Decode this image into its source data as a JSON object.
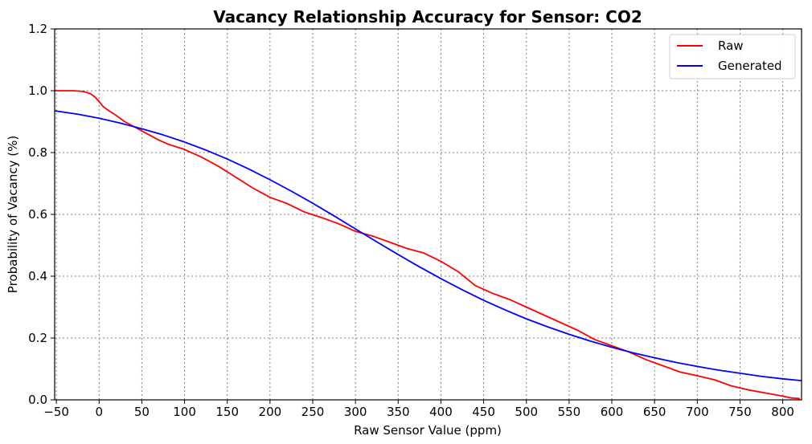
{
  "chart_data": {
    "type": "line",
    "title": "Vacancy Relationship Accuracy for Sensor: CO2",
    "xlabel": "Raw Sensor Value (ppm)",
    "ylabel": "Probability of Vacancy (%)",
    "xlim": [
      -52,
      822
    ],
    "ylim": [
      0,
      1.2
    ],
    "xticks": [
      -50,
      0,
      50,
      100,
      150,
      200,
      250,
      300,
      350,
      400,
      450,
      500,
      550,
      600,
      650,
      700,
      750,
      800
    ],
    "xtick_labels": [
      "−50",
      "0",
      "50",
      "100",
      "150",
      "200",
      "250",
      "300",
      "350",
      "400",
      "450",
      "500",
      "550",
      "600",
      "650",
      "700",
      "750",
      "800"
    ],
    "yticks": [
      0.0,
      0.2,
      0.4,
      0.6,
      0.8,
      1.0,
      1.2
    ],
    "ytick_labels": [
      "0.0",
      "0.2",
      "0.4",
      "0.6",
      "0.8",
      "1.0",
      "1.2"
    ],
    "grid": true,
    "legend_position": "top-right",
    "series": [
      {
        "name": "Raw",
        "color": "#ff0000",
        "x": [
          -52,
          -40,
          -30,
          -20,
          -15,
          -10,
          -5,
          0,
          5,
          10,
          20,
          30,
          40,
          50,
          60,
          70,
          80,
          100,
          120,
          140,
          160,
          180,
          200,
          220,
          240,
          260,
          280,
          300,
          320,
          340,
          360,
          380,
          400,
          420,
          440,
          460,
          480,
          500,
          520,
          540,
          560,
          580,
          600,
          620,
          640,
          660,
          680,
          700,
          720,
          740,
          760,
          780,
          800,
          810,
          820
        ],
        "y": [
          1.0,
          1.0,
          1.0,
          0.998,
          0.995,
          0.99,
          0.98,
          0.965,
          0.948,
          0.938,
          0.92,
          0.9,
          0.885,
          0.87,
          0.855,
          0.84,
          0.828,
          0.81,
          0.785,
          0.755,
          0.72,
          0.685,
          0.655,
          0.635,
          0.608,
          0.59,
          0.57,
          0.545,
          0.53,
          0.51,
          0.49,
          0.475,
          0.448,
          0.415,
          0.37,
          0.345,
          0.325,
          0.3,
          0.275,
          0.25,
          0.225,
          0.195,
          0.175,
          0.155,
          0.13,
          0.11,
          0.09,
          0.078,
          0.065,
          0.045,
          0.032,
          0.022,
          0.012,
          0.006,
          0.004
        ]
      },
      {
        "name": "Generated",
        "color": "#0000ff",
        "x": [
          -52,
          -25,
          0,
          25,
          50,
          75,
          100,
          125,
          150,
          175,
          200,
          225,
          250,
          275,
          300,
          325,
          350,
          375,
          400,
          425,
          450,
          475,
          500,
          525,
          550,
          575,
          600,
          625,
          650,
          675,
          700,
          725,
          750,
          775,
          800,
          822
        ],
        "y": [
          0.935,
          0.924,
          0.911,
          0.895,
          0.877,
          0.857,
          0.834,
          0.808,
          0.779,
          0.747,
          0.712,
          0.675,
          0.636,
          0.595,
          0.553,
          0.511,
          0.47,
          0.43,
          0.392,
          0.356,
          0.322,
          0.291,
          0.262,
          0.236,
          0.212,
          0.19,
          0.17,
          0.152,
          0.136,
          0.121,
          0.108,
          0.096,
          0.086,
          0.076,
          0.068,
          0.062
        ]
      }
    ]
  }
}
